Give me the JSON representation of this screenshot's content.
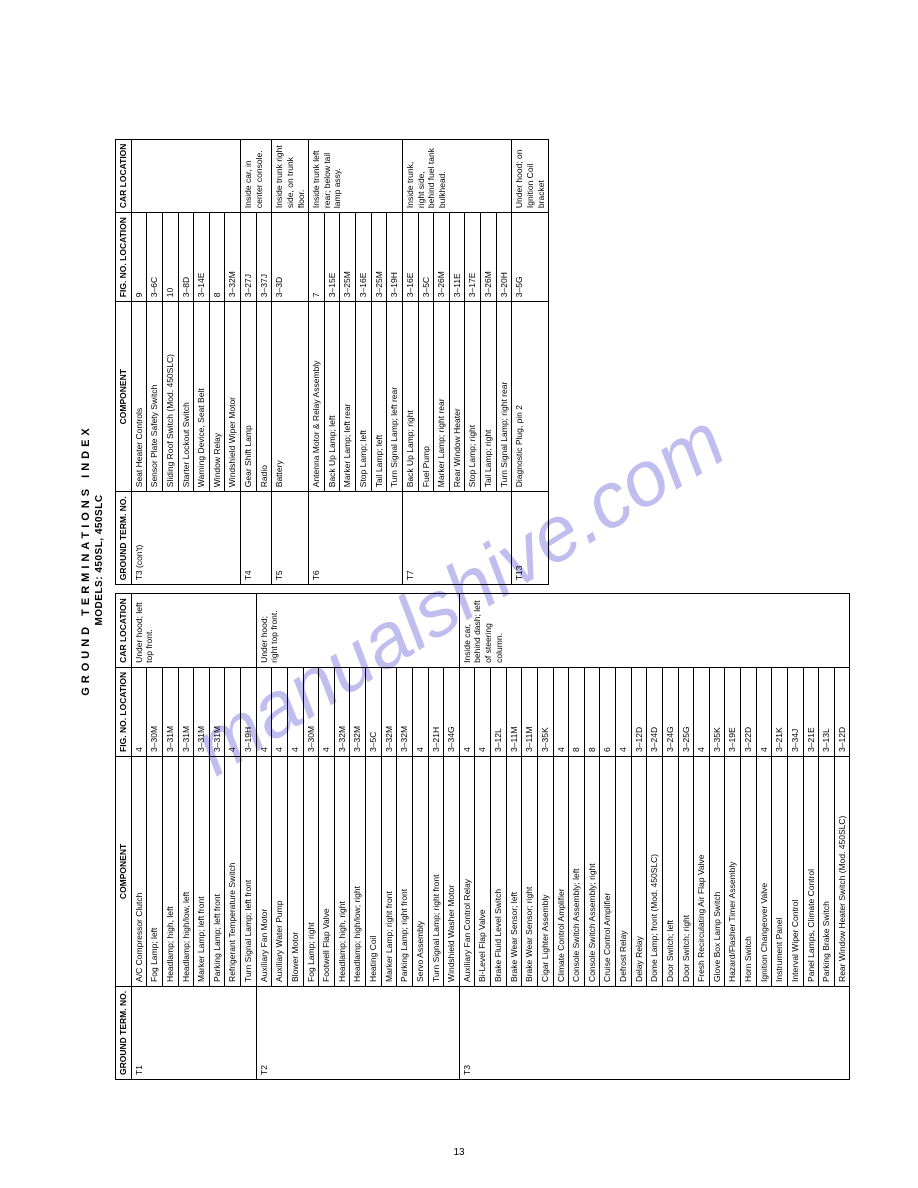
{
  "title": "GROUND TERMINATIONS INDEX",
  "subtitle": "MODELS: 450SL, 450SLC",
  "page_number": "13",
  "watermark": "manualshive.com",
  "headers": {
    "term": "GROUND TERM. NO.",
    "component": "COMPONENT",
    "fig": "FIG. NO. LOCATION",
    "car": "CAR LOCATION"
  },
  "left_groups": [
    {
      "term": "T1",
      "car": "Under hood; left top front.",
      "rows": [
        [
          "A/C Compressor Clutch",
          "4"
        ],
        [
          "Fog Lamp; left",
          "3–30M"
        ],
        [
          "Headlamp; high, left",
          "3–31M"
        ],
        [
          "Headlamp; high/low, left",
          "3–31M"
        ],
        [
          "Marker Lamp; left front",
          "3–31M"
        ],
        [
          "Parking Lamp; left front",
          "3–31M"
        ],
        [
          "Refrigerant Temperature Switch",
          "4"
        ],
        [
          "Turn Signal Lamp; left front",
          "3–19H"
        ]
      ]
    },
    {
      "term": "T2",
      "car": "Under hood; right top front.",
      "rows": [
        [
          "Auxiliary Fan Motor",
          "4"
        ],
        [
          "Auxiliary Water Pump",
          "4"
        ],
        [
          "Blower Motor",
          "4"
        ],
        [
          "Fog Lamp; right",
          "3–30M"
        ],
        [
          "Footwell Flap Valve",
          "4"
        ],
        [
          "Headlamp; high, right",
          "3–32M"
        ],
        [
          "Headlamp; high/low; right",
          "3–32M"
        ],
        [
          "Heating Coil",
          "3–5C"
        ],
        [
          "Marker Lamp; right front",
          "3–32M"
        ],
        [
          "Parking Lamp; right front",
          "3–32M"
        ],
        [
          "Servo Assembly",
          "4"
        ],
        [
          "Turn Signal Lamp; right front",
          "3–21H"
        ],
        [
          "Windshield Washer Motor",
          "3–34G"
        ]
      ]
    },
    {
      "term": "T3",
      "car": "Inside car, behind dash; left of steering column.",
      "rows": [
        [
          "Auxiliary Fan Control Relay",
          "4"
        ],
        [
          "Bi-Level Flap Valve",
          "4"
        ],
        [
          "Brake Fluid Level Switch",
          "3–12L"
        ],
        [
          "Brake Wear Sensor; left",
          "3–11M"
        ],
        [
          "Brake Wear Sensor; right",
          "3–11M"
        ],
        [
          "Cigar Lighter Assembly",
          "3–35K"
        ],
        [
          "Climate Control Amplifier",
          "4"
        ],
        [
          "Console Switch Assembly; left",
          "8"
        ],
        [
          "Console Switch Assembly; right",
          "8"
        ],
        [
          "Cruise Control Amplifier",
          "6"
        ],
        [
          "Defrost Relay",
          "4"
        ],
        [
          "Delay Relay",
          "3–12D"
        ],
        [
          "Dome Lamp; front (Mod. 450SLC)",
          "3–24D"
        ],
        [
          "Door Switch; left",
          "3–24G"
        ],
        [
          "Door Switch; right",
          "3–25G"
        ],
        [
          "Fresh Recirculating Air Flap Valve",
          "4"
        ],
        [
          "Glove Box Lamp Switch",
          "3–35K"
        ],
        [
          "Hazard/Flasher Timer Assembly",
          "3–19E"
        ],
        [
          "Horn Switch",
          "3–22D"
        ],
        [
          "Ignition Changeover Valve",
          "4"
        ],
        [
          "Instrument Panel",
          "3–21K"
        ],
        [
          "Interval Wiper Control",
          "3–34J"
        ],
        [
          "Panel Lamps, Climate Control",
          "3–21E"
        ],
        [
          "Parking Brake Switch",
          "3–13L"
        ],
        [
          "Rear Window Heater Switch (Mod. 450SLC)",
          "3–12D"
        ]
      ]
    }
  ],
  "right_groups": [
    {
      "term": "T3 (con't)",
      "car": "",
      "rows": [
        [
          "Seat Heater Controls",
          "9"
        ],
        [
          "Sensor Plate Safety Switch",
          "3–6C"
        ],
        [
          "Sliding Roof Switch (Mod. 450SLC)",
          "10"
        ],
        [
          "Starter Lockout Switch",
          "3–8D"
        ],
        [
          "Warning Device, Seat Belt",
          "3–14E"
        ],
        [
          "Window Relay",
          "8"
        ],
        [
          "Windshield Wiper Motor",
          "3–32M"
        ]
      ]
    },
    {
      "term": "T4",
      "car": "Inside car, in center console.",
      "rows": [
        [
          "Gear Shift Lamp",
          "3–27J"
        ],
        [
          "Radio",
          "3–37J"
        ]
      ]
    },
    {
      "term": "T5",
      "car": "Inside trunk right side, on trunk floor.",
      "rows": [
        [
          "Battery",
          "3–3D"
        ]
      ]
    },
    {
      "term": "T6",
      "car": "Inside trunk left rear; below tail lamp assy.",
      "rows": [
        [
          "Antenna Motor & Relay Assembly",
          "7"
        ],
        [
          "Back Up Lamp; left",
          "3–15E"
        ],
        [
          "Marker Lamp; left rear",
          "3–25M"
        ],
        [
          "Stop Lamp; left",
          "3–16E"
        ],
        [
          "Tail Lamp; left",
          "3–25M"
        ],
        [
          "Turn Signal Lamp; left rear",
          "3–19H"
        ]
      ]
    },
    {
      "term": "T7",
      "car": "Inside trunk, right side, behind fuel tank bulkhead.",
      "rows": [
        [
          "Back Up Lamp; right",
          "3–16E"
        ],
        [
          "Fuel Pump",
          "3–5C"
        ],
        [
          "Marker Lamp; right rear",
          "3–26M"
        ],
        [
          "Rear Window Heater",
          "3–11E"
        ],
        [
          "Stop Lamp; right",
          "3–17E"
        ],
        [
          "Tail Lamp; right",
          "3–26M"
        ],
        [
          "Turn Signal Lamp; right rear",
          "3–20H"
        ]
      ]
    },
    {
      "term": "T13",
      "car": "Under hood; on Ignition Coil bracket",
      "rows": [
        [
          "Diagnostic Plug, pin 2",
          "3–5G"
        ]
      ]
    }
  ]
}
